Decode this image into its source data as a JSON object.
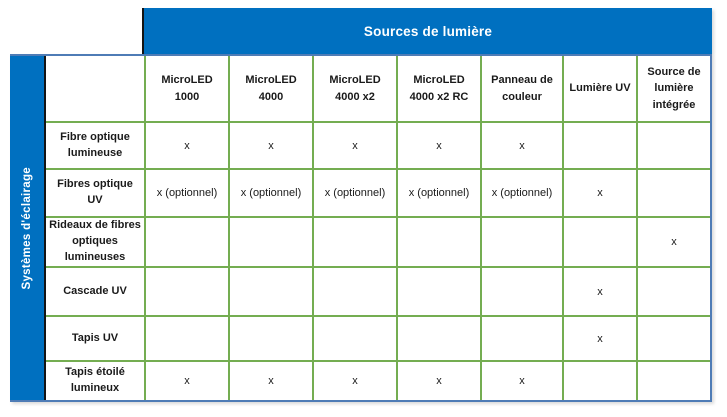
{
  "colors": {
    "banner_blue": "#0070C0",
    "grid_green": "#74AD51",
    "frame_blue": "#4E7CB6",
    "frame_dark": "#141414",
    "text_dark": "#1A1A1A"
  },
  "banner": {
    "title": "Sources de lumière"
  },
  "sidebar": {
    "title": "Systèmes d'éclairage"
  },
  "matrix": {
    "corner": "",
    "columns": [
      "MicroLED 1000",
      "MicroLED 4000",
      "MicroLED 4000 x2",
      "MicroLED 4000 x2 RC",
      "Panneau de couleur",
      "Lumière UV",
      "Source de lumière intégrée"
    ],
    "rows": [
      {
        "label": "Fibre optique lumineuse",
        "cells": [
          "x",
          "x",
          "x",
          "x",
          "x",
          "",
          ""
        ]
      },
      {
        "label": "Fibres optique UV",
        "cells": [
          "x (optionnel)",
          "x (optionnel)",
          "x (optionnel)",
          "x (optionnel)",
          "x (optionnel)",
          "x",
          ""
        ]
      },
      {
        "label": "Rideaux de fibres optiques lumineuses",
        "cells": [
          "",
          "",
          "",
          "",
          "",
          "",
          "x"
        ]
      },
      {
        "label": "Cascade UV",
        "cells": [
          "",
          "",
          "",
          "",
          "",
          "x",
          ""
        ]
      },
      {
        "label": "Tapis UV",
        "cells": [
          "",
          "",
          "",
          "",
          "",
          "x",
          ""
        ]
      },
      {
        "label": "Tapis étoilé lumineux",
        "cells": [
          "x",
          "x",
          "x",
          "x",
          "x",
          "",
          ""
        ]
      }
    ]
  }
}
